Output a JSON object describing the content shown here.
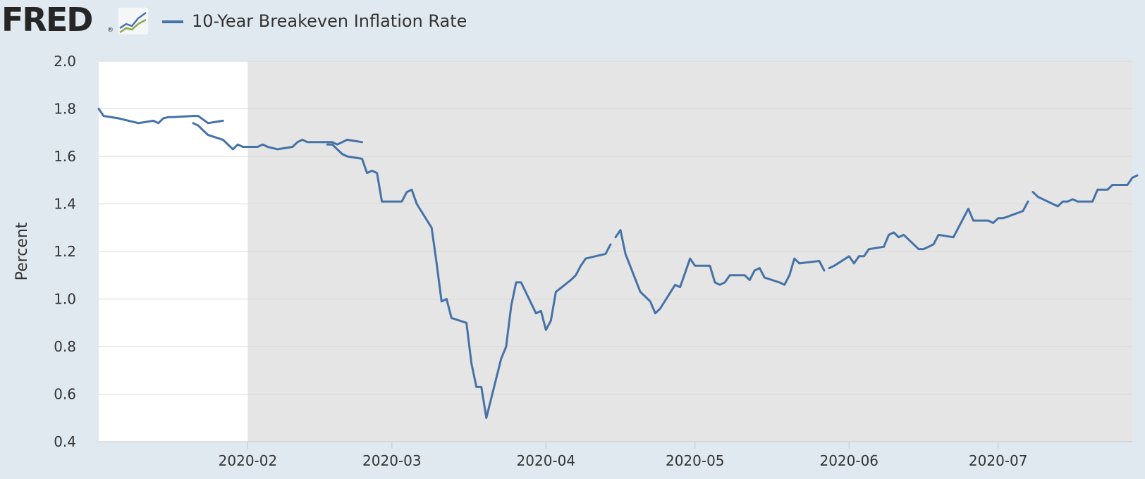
{
  "header": {
    "logo_text": "FRED",
    "logo_mark": "®",
    "logo_icon": "fred-chart-icon",
    "legend_label": "10-Year Breakeven Inflation Rate"
  },
  "colors": {
    "series": "#4572a7",
    "background": "#e1e9f0",
    "recession_shade": "#e5e5e5",
    "plot_bg": "#ffffff",
    "grid": "#d8d8d8"
  },
  "chart_data": {
    "type": "line",
    "title": "",
    "ylabel": "Percent",
    "xlabel": "",
    "ylim": [
      0.4,
      2.0
    ],
    "yticks": [
      "0.4",
      "0.6",
      "0.8",
      "1.0",
      "1.2",
      "1.4",
      "1.6",
      "1.8",
      "2.0"
    ],
    "xlim": [
      "2020-01-02",
      "2020-07-28"
    ],
    "xticks": [
      {
        "date": "2020-02-01",
        "label": "2020-02"
      },
      {
        "date": "2020-03-01",
        "label": "2020-03"
      },
      {
        "date": "2020-04-01",
        "label": "2020-04"
      },
      {
        "date": "2020-05-01",
        "label": "2020-05"
      },
      {
        "date": "2020-06-01",
        "label": "2020-06"
      },
      {
        "date": "2020-07-01",
        "label": "2020-07"
      }
    ],
    "grid": true,
    "legend": "top-left",
    "shaded_period": {
      "start": "2020-02-01",
      "end": "2020-07-28",
      "label": "recession"
    },
    "series": [
      {
        "name": "10-Year Breakeven Inflation Rate",
        "segments": [
          [
            [
              "2020-01-02",
              1.8
            ],
            [
              "2020-01-03",
              1.77
            ],
            [
              "2020-01-06",
              1.76
            ],
            [
              "2020-01-07",
              1.755
            ],
            [
              "2020-01-08",
              1.75
            ],
            [
              "2020-01-09",
              1.745
            ],
            [
              "2020-01-10",
              1.74
            ],
            [
              "2020-01-13",
              1.75
            ],
            [
              "2020-01-14",
              1.74
            ],
            [
              "2020-01-15",
              1.76
            ],
            [
              "2020-01-16",
              1.765
            ],
            [
              "2020-01-17",
              1.765
            ],
            [
              "2020-01-21",
              1.77
            ],
            [
              "2020-01-22",
              1.77
            ],
            [
              "2020-01-23",
              1.755
            ],
            [
              "2020-01-24",
              1.74
            ],
            [
              "2020-01-27",
              1.75
            ]
          ],
          [
            [
              "2020-01-21",
              1.74
            ],
            [
              "2020-01-22",
              1.73
            ],
            [
              "2020-01-23",
              1.71
            ],
            [
              "2020-01-24",
              1.69
            ],
            [
              "2020-01-27",
              1.67
            ],
            [
              "2020-01-28",
              1.65
            ],
            [
              "2020-01-29",
              1.63
            ],
            [
              "2020-01-30",
              1.65
            ],
            [
              "2020-01-31",
              1.64
            ],
            [
              "2020-02-03",
              1.64
            ],
            [
              "2020-02-04",
              1.65
            ],
            [
              "2020-02-05",
              1.64
            ],
            [
              "2020-02-06",
              1.635
            ],
            [
              "2020-02-07",
              1.63
            ],
            [
              "2020-02-10",
              1.64
            ],
            [
              "2020-02-11",
              1.66
            ],
            [
              "2020-02-12",
              1.67
            ],
            [
              "2020-02-13",
              1.66
            ],
            [
              "2020-02-14",
              1.66
            ],
            [
              "2020-02-18",
              1.66
            ],
            [
              "2020-02-19",
              1.65
            ],
            [
              "2020-02-20",
              1.66
            ],
            [
              "2020-02-21",
              1.67
            ],
            [
              "2020-02-24",
              1.66
            ]
          ],
          [
            [
              "2020-02-17",
              1.65
            ],
            [
              "2020-02-18",
              1.65
            ],
            [
              "2020-02-19",
              1.63
            ],
            [
              "2020-02-20",
              1.61
            ],
            [
              "2020-02-21",
              1.6
            ],
            [
              "2020-02-24",
              1.59
            ],
            [
              "2020-02-25",
              1.53
            ],
            [
              "2020-02-26",
              1.54
            ],
            [
              "2020-02-27",
              1.53
            ],
            [
              "2020-02-28",
              1.41
            ],
            [
              "2020-03-02",
              1.41
            ],
            [
              "2020-03-03",
              1.41
            ],
            [
              "2020-03-04",
              1.45
            ],
            [
              "2020-03-05",
              1.46
            ],
            [
              "2020-03-06",
              1.4
            ],
            [
              "2020-03-09",
              1.3
            ],
            [
              "2020-03-10",
              1.15
            ],
            [
              "2020-03-11",
              0.99
            ],
            [
              "2020-03-12",
              1.0
            ],
            [
              "2020-03-13",
              0.92
            ],
            [
              "2020-03-16",
              0.9
            ],
            [
              "2020-03-17",
              0.73
            ],
            [
              "2020-03-18",
              0.63
            ],
            [
              "2020-03-19",
              0.63
            ],
            [
              "2020-03-20",
              0.5
            ],
            [
              "2020-03-23",
              0.75
            ],
            [
              "2020-03-24",
              0.8
            ],
            [
              "2020-03-25",
              0.97
            ],
            [
              "2020-03-26",
              1.07
            ],
            [
              "2020-03-27",
              1.07
            ],
            [
              "2020-03-30",
              0.94
            ],
            [
              "2020-03-31",
              0.95
            ],
            [
              "2020-04-01",
              0.87
            ],
            [
              "2020-04-02",
              0.91
            ],
            [
              "2020-04-03",
              1.03
            ],
            [
              "2020-04-06",
              1.08
            ],
            [
              "2020-04-07",
              1.1
            ],
            [
              "2020-04-08",
              1.14
            ],
            [
              "2020-04-09",
              1.17
            ],
            [
              "2020-04-13",
              1.19
            ],
            [
              "2020-04-14",
              1.23
            ]
          ],
          [
            [
              "2020-04-15",
              1.26
            ],
            [
              "2020-04-16",
              1.29
            ],
            [
              "2020-04-17",
              1.19
            ],
            [
              "2020-04-20",
              1.03
            ],
            [
              "2020-04-21",
              1.01
            ],
            [
              "2020-04-22",
              0.99
            ],
            [
              "2020-04-23",
              0.94
            ],
            [
              "2020-04-24",
              0.96
            ],
            [
              "2020-04-27",
              1.06
            ],
            [
              "2020-04-28",
              1.05
            ],
            [
              "2020-04-29",
              1.11
            ],
            [
              "2020-04-30",
              1.17
            ],
            [
              "2020-05-01",
              1.14
            ],
            [
              "2020-05-04",
              1.14
            ],
            [
              "2020-05-05",
              1.07
            ],
            [
              "2020-05-06",
              1.06
            ],
            [
              "2020-05-07",
              1.07
            ],
            [
              "2020-05-08",
              1.1
            ],
            [
              "2020-05-11",
              1.1
            ],
            [
              "2020-05-12",
              1.08
            ],
            [
              "2020-05-13",
              1.12
            ],
            [
              "2020-05-14",
              1.13
            ],
            [
              "2020-05-15",
              1.09
            ],
            [
              "2020-05-18",
              1.07
            ],
            [
              "2020-05-19",
              1.06
            ],
            [
              "2020-05-20",
              1.1
            ],
            [
              "2020-05-21",
              1.17
            ],
            [
              "2020-05-22",
              1.15
            ],
            [
              "2020-05-26",
              1.16
            ],
            [
              "2020-05-27",
              1.12
            ]
          ],
          [
            [
              "2020-05-28",
              1.13
            ],
            [
              "2020-05-29",
              1.14
            ],
            [
              "2020-06-01",
              1.18
            ],
            [
              "2020-06-02",
              1.15
            ],
            [
              "2020-06-03",
              1.18
            ],
            [
              "2020-06-04",
              1.18
            ],
            [
              "2020-06-05",
              1.21
            ],
            [
              "2020-06-08",
              1.22
            ],
            [
              "2020-06-09",
              1.27
            ],
            [
              "2020-06-10",
              1.28
            ],
            [
              "2020-06-11",
              1.26
            ],
            [
              "2020-06-12",
              1.27
            ],
            [
              "2020-06-15",
              1.21
            ],
            [
              "2020-06-16",
              1.21
            ],
            [
              "2020-06-17",
              1.22
            ],
            [
              "2020-06-18",
              1.23
            ],
            [
              "2020-06-19",
              1.27
            ],
            [
              "2020-06-22",
              1.26
            ],
            [
              "2020-06-23",
              1.3
            ],
            [
              "2020-06-24",
              1.34
            ],
            [
              "2020-06-25",
              1.38
            ],
            [
              "2020-06-26",
              1.33
            ],
            [
              "2020-06-29",
              1.33
            ],
            [
              "2020-06-30",
              1.32
            ],
            [
              "2020-07-01",
              1.34
            ],
            [
              "2020-07-02",
              1.34
            ],
            [
              "2020-07-06",
              1.37
            ],
            [
              "2020-07-07",
              1.41
            ]
          ],
          [
            [
              "2020-07-08",
              1.45
            ],
            [
              "2020-07-09",
              1.43
            ],
            [
              "2020-07-10",
              1.42
            ],
            [
              "2020-07-13",
              1.39
            ],
            [
              "2020-07-14",
              1.41
            ],
            [
              "2020-07-15",
              1.41
            ],
            [
              "2020-07-16",
              1.42
            ],
            [
              "2020-07-17",
              1.41
            ],
            [
              "2020-07-20",
              1.41
            ],
            [
              "2020-07-21",
              1.46
            ],
            [
              "2020-07-22",
              1.46
            ],
            [
              "2020-07-23",
              1.46
            ],
            [
              "2020-07-24",
              1.48
            ],
            [
              "2020-07-27",
              1.48
            ],
            [
              "2020-07-28",
              1.51
            ],
            [
              "2020-07-29",
              1.52
            ]
          ]
        ]
      }
    ]
  }
}
